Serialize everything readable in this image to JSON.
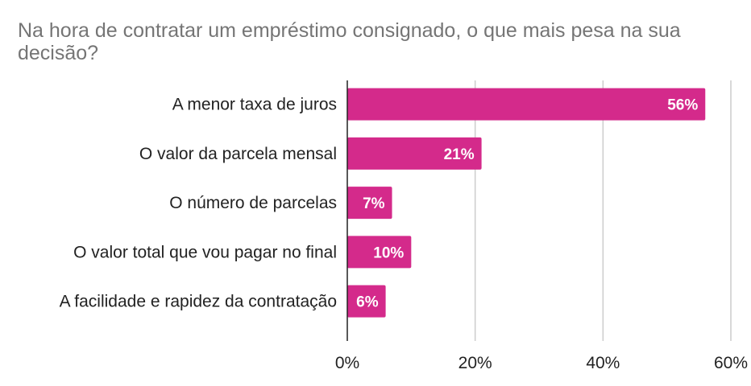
{
  "title": "Na hora de contratar um empréstimo consignado, o que mais pesa na sua decisão?",
  "chart_data": {
    "type": "bar",
    "orientation": "horizontal",
    "title": "Na hora de contratar um empréstimo consignado, o que mais pesa na sua decisão?",
    "categories": [
      "A menor taxa de juros",
      "O valor da parcela mensal",
      "O número de parcelas",
      "O valor total que vou pagar no final",
      "A facilidade e rapidez da contratação"
    ],
    "values": [
      56,
      21,
      7,
      10,
      6
    ],
    "data_labels": [
      "56%",
      "21%",
      "7%",
      "10%",
      "6%"
    ],
    "xlim": [
      0,
      60
    ],
    "x_ticks": [
      0,
      20,
      40,
      60
    ],
    "x_tick_labels": [
      "0%",
      "20%",
      "40%",
      "60%"
    ],
    "grid": true,
    "bar_color": "#d42a8b",
    "gridline_color": "#cccccc",
    "axis_color": "#222222"
  }
}
